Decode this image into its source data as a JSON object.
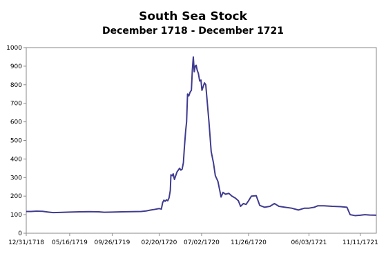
{
  "chart_data": {
    "type": "line",
    "title": "South Sea Stock",
    "subtitle": "December 1718 - December 1721",
    "xlabel": "",
    "ylabel": "",
    "ylim": [
      0,
      1000
    ],
    "yticks": [
      0,
      100,
      200,
      300,
      400,
      500,
      600,
      700,
      800,
      900,
      1000
    ],
    "xlim": [
      "12/31/1718",
      "12/31/1721"
    ],
    "xticks": [
      "12/31/1718",
      "05/16/1719",
      "09/26/1719",
      "02/20/1720",
      "07/02/1720",
      "11/26/1720",
      "06/03/1721",
      "11/11/1721"
    ],
    "grid": false,
    "line_color": "#3f3b8f",
    "series": [
      {
        "name": "",
        "points": [
          [
            "1718-12-31",
            117
          ],
          [
            "1719-01-15",
            117
          ],
          [
            "1719-02-01",
            119
          ],
          [
            "1719-02-20",
            118
          ],
          [
            "1719-03-10",
            114
          ],
          [
            "1719-03-25",
            111
          ],
          [
            "1719-04-15",
            112
          ],
          [
            "1719-05-16",
            114
          ],
          [
            "1719-06-15",
            115
          ],
          [
            "1719-07-15",
            116
          ],
          [
            "1719-08-15",
            115
          ],
          [
            "1719-09-01",
            113
          ],
          [
            "1719-09-26",
            114
          ],
          [
            "1719-10-26",
            115
          ],
          [
            "1719-11-26",
            116
          ],
          [
            "1719-12-26",
            117
          ],
          [
            "1720-01-10",
            120
          ],
          [
            "1720-01-25",
            125
          ],
          [
            "1720-02-05",
            128
          ],
          [
            "1720-02-20",
            133
          ],
          [
            "1720-02-27",
            130
          ],
          [
            "1720-03-02",
            165
          ],
          [
            "1720-03-06",
            178
          ],
          [
            "1720-03-10",
            172
          ],
          [
            "1720-03-14",
            180
          ],
          [
            "1720-03-18",
            175
          ],
          [
            "1720-03-22",
            190
          ],
          [
            "1720-03-26",
            230
          ],
          [
            "1720-03-28",
            315
          ],
          [
            "1720-04-01",
            310
          ],
          [
            "1720-04-04",
            320
          ],
          [
            "1720-04-08",
            290
          ],
          [
            "1720-04-12",
            310
          ],
          [
            "1720-04-16",
            330
          ],
          [
            "1720-04-20",
            340
          ],
          [
            "1720-04-24",
            350
          ],
          [
            "1720-04-28",
            340
          ],
          [
            "1720-05-02",
            345
          ],
          [
            "1720-05-06",
            380
          ],
          [
            "1720-05-09",
            460
          ],
          [
            "1720-05-13",
            550
          ],
          [
            "1720-05-16",
            600
          ],
          [
            "1720-05-19",
            750
          ],
          [
            "1720-05-23",
            740
          ],
          [
            "1720-05-27",
            760
          ],
          [
            "1720-05-31",
            770
          ],
          [
            "1720-06-03",
            880
          ],
          [
            "1720-06-06",
            950
          ],
          [
            "1720-06-09",
            870
          ],
          [
            "1720-06-12",
            900
          ],
          [
            "1720-06-15",
            905
          ],
          [
            "1720-06-18",
            880
          ],
          [
            "1720-06-22",
            860
          ],
          [
            "1720-06-26",
            820
          ],
          [
            "1720-06-30",
            825
          ],
          [
            "1720-07-03",
            770
          ],
          [
            "1720-07-07",
            790
          ],
          [
            "1720-07-11",
            810
          ],
          [
            "1720-07-15",
            800
          ],
          [
            "1720-07-20",
            700
          ],
          [
            "1720-07-25",
            600
          ],
          [
            "1720-08-01",
            440
          ],
          [
            "1720-08-08",
            380
          ],
          [
            "1720-08-14",
            310
          ],
          [
            "1720-08-22",
            280
          ],
          [
            "1720-09-01",
            195
          ],
          [
            "1720-09-07",
            220
          ],
          [
            "1720-09-15",
            210
          ],
          [
            "1720-09-25",
            215
          ],
          [
            "1720-10-05",
            200
          ],
          [
            "1720-10-15",
            190
          ],
          [
            "1720-10-25",
            175
          ],
          [
            "1720-11-01",
            145
          ],
          [
            "1720-11-10",
            160
          ],
          [
            "1720-11-18",
            155
          ],
          [
            "1720-11-26",
            175
          ],
          [
            "1720-12-05",
            200
          ],
          [
            "1720-12-20",
            202
          ],
          [
            "1720-12-31",
            150
          ],
          [
            "1721-01-15",
            140
          ],
          [
            "1721-02-01",
            145
          ],
          [
            "1721-02-15",
            160
          ],
          [
            "1721-03-01",
            145
          ],
          [
            "1721-03-20",
            140
          ],
          [
            "1721-04-10",
            135
          ],
          [
            "1721-05-01",
            125
          ],
          [
            "1721-05-20",
            135
          ],
          [
            "1721-06-03",
            135
          ],
          [
            "1721-06-20",
            140
          ],
          [
            "1721-07-01",
            148
          ],
          [
            "1721-07-20",
            148
          ],
          [
            "1721-08-15",
            145
          ],
          [
            "1721-09-10",
            143
          ],
          [
            "1721-09-30",
            140
          ],
          [
            "1721-10-10",
            100
          ],
          [
            "1721-10-25",
            95
          ],
          [
            "1721-11-11",
            97
          ],
          [
            "1721-11-25",
            100
          ],
          [
            "1721-12-10",
            98
          ],
          [
            "1721-12-31",
            97
          ]
        ]
      }
    ]
  }
}
